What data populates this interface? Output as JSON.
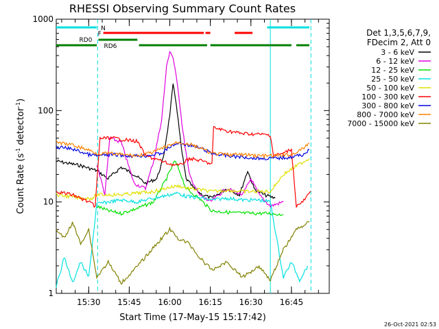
{
  "chart_data": {
    "type": "line",
    "title": "RHESSI Observing Summary Count Rates",
    "xlabel": "Start Time (17-May-15 15:17:42)",
    "ylabel_main": "Count Rate (s",
    "ylabel_sup": "-1",
    "ylabel_mid": " detector",
    "ylabel_sup2": "-1",
    "ylabel_end": ")",
    "yscale": "log",
    "ylim": [
      1,
      1000
    ],
    "xlim_minutes": [
      15.3,
      16.983
    ],
    "x_tick_labels": [
      "15:30",
      "15:45",
      "16:00",
      "16:15",
      "16:30",
      "16:45"
    ],
    "x_tick_values": [
      15.5,
      15.75,
      16.0,
      16.25,
      16.5,
      16.75
    ],
    "y_tick_labels": [
      "1",
      "10",
      "100",
      "1000"
    ],
    "y_tick_values": [
      1,
      10,
      100,
      1000
    ],
    "legend_header": [
      "Det 1,3,5,6,7,9,",
      "FDecim 2, Att 0"
    ],
    "legend_placement": "right",
    "series": [
      {
        "name": "3 - 6 keV",
        "color": "#000000",
        "points": [
          [
            15.3,
            28
          ],
          [
            15.45,
            25
          ],
          [
            15.55,
            22
          ],
          [
            15.62,
            18
          ],
          [
            15.7,
            24
          ],
          [
            15.78,
            20
          ],
          [
            15.85,
            16
          ],
          [
            15.92,
            18
          ],
          [
            15.96,
            30
          ],
          [
            16.0,
            90
          ],
          [
            16.02,
            190
          ],
          [
            16.04,
            120
          ],
          [
            16.07,
            40
          ],
          [
            16.1,
            18
          ],
          [
            16.15,
            14
          ],
          [
            16.2,
            12
          ],
          [
            16.26,
            11
          ],
          [
            16.35,
            14
          ],
          [
            16.43,
            12
          ],
          [
            16.48,
            22
          ],
          [
            16.52,
            14
          ],
          [
            16.58,
            12
          ],
          [
            16.65,
            11
          ]
        ]
      },
      {
        "name": "6 - 12 keV",
        "color": "#e000e0",
        "points": [
          [
            15.55,
            26
          ],
          [
            15.6,
            12
          ],
          [
            15.63,
            50
          ],
          [
            15.7,
            45
          ],
          [
            15.78,
            16
          ],
          [
            15.85,
            14
          ],
          [
            15.9,
            28
          ],
          [
            15.95,
            80
          ],
          [
            15.98,
            300
          ],
          [
            16.0,
            450
          ],
          [
            16.02,
            380
          ],
          [
            16.05,
            180
          ],
          [
            16.08,
            60
          ],
          [
            16.12,
            20
          ],
          [
            16.18,
            12
          ],
          [
            16.25,
            10
          ],
          [
            16.35,
            14
          ],
          [
            16.45,
            12
          ],
          [
            16.5,
            18
          ],
          [
            16.55,
            12
          ],
          [
            16.62,
            9
          ],
          [
            16.7,
            10
          ]
        ]
      },
      {
        "name": "12 - 25 keV",
        "color": "#00e000",
        "points": [
          [
            15.55,
            9
          ],
          [
            15.62,
            8
          ],
          [
            15.7,
            7.5
          ],
          [
            15.8,
            8.5
          ],
          [
            15.9,
            10
          ],
          [
            15.98,
            18
          ],
          [
            16.03,
            28
          ],
          [
            16.06,
            22
          ],
          [
            16.1,
            14
          ],
          [
            16.18,
            11
          ],
          [
            16.26,
            8
          ],
          [
            16.4,
            7.6
          ],
          [
            16.5,
            7.5
          ],
          [
            16.6,
            7.5
          ],
          [
            16.7,
            7.3
          ]
        ]
      },
      {
        "name": "25 - 50 keV",
        "color": "#00e0e0",
        "points": [
          [
            15.3,
            1.2
          ],
          [
            15.35,
            2.5
          ],
          [
            15.4,
            1.3
          ],
          [
            15.45,
            2.2
          ],
          [
            15.5,
            1.5
          ],
          [
            15.55,
            9.5
          ],
          [
            15.62,
            10
          ],
          [
            15.7,
            10.5
          ],
          [
            15.8,
            10
          ],
          [
            15.9,
            11
          ],
          [
            16.0,
            12
          ],
          [
            16.05,
            12.5
          ],
          [
            16.1,
            11.5
          ],
          [
            16.2,
            11
          ],
          [
            16.26,
            10.5
          ],
          [
            16.35,
            11
          ],
          [
            16.45,
            10.5
          ],
          [
            16.55,
            10.5
          ],
          [
            16.62,
            10
          ],
          [
            16.7,
            1.5
          ],
          [
            16.75,
            2.2
          ],
          [
            16.8,
            1.4
          ],
          [
            16.85,
            2.0
          ]
        ]
      },
      {
        "name": "50 - 100 keV",
        "color": "#e0e000",
        "points": [
          [
            15.3,
            12
          ],
          [
            15.45,
            11
          ],
          [
            15.52,
            11
          ],
          [
            15.55,
            12
          ],
          [
            15.62,
            12
          ],
          [
            15.7,
            12
          ],
          [
            15.8,
            12.5
          ],
          [
            15.9,
            13
          ],
          [
            16.0,
            14.5
          ],
          [
            16.05,
            15
          ],
          [
            16.12,
            14
          ],
          [
            16.2,
            13.5
          ],
          [
            16.26,
            13
          ],
          [
            16.35,
            13.5
          ],
          [
            16.45,
            13
          ],
          [
            16.55,
            13
          ],
          [
            16.62,
            13
          ],
          [
            16.7,
            20
          ],
          [
            16.8,
            26
          ],
          [
            16.86,
            30
          ]
        ]
      },
      {
        "name": "100 - 300 keV",
        "color": "#ff0000",
        "points": [
          [
            15.3,
            13
          ],
          [
            15.4,
            12
          ],
          [
            15.5,
            10
          ],
          [
            15.54,
            9
          ],
          [
            15.57,
            50
          ],
          [
            15.65,
            50
          ],
          [
            15.72,
            48
          ],
          [
            15.8,
            46
          ],
          [
            15.85,
            32
          ],
          [
            15.95,
            28
          ],
          [
            16.0,
            26
          ],
          [
            16.06,
            25
          ],
          [
            16.12,
            30
          ],
          [
            16.2,
            28
          ],
          [
            16.26,
            26
          ],
          [
            16.27,
            65
          ],
          [
            16.35,
            60
          ],
          [
            16.45,
            56
          ],
          [
            16.55,
            55
          ],
          [
            16.62,
            54
          ],
          [
            16.64,
            32
          ],
          [
            16.7,
            34
          ],
          [
            16.75,
            38
          ],
          [
            16.78,
            9
          ],
          [
            16.82,
            10
          ],
          [
            16.87,
            13
          ]
        ]
      },
      {
        "name": "300 - 800 keV",
        "color": "#0000e0",
        "points": [
          [
            15.3,
            40
          ],
          [
            15.4,
            38
          ],
          [
            15.5,
            33
          ],
          [
            15.55,
            32
          ],
          [
            15.65,
            33
          ],
          [
            15.75,
            32
          ],
          [
            15.85,
            32
          ],
          [
            15.95,
            34
          ],
          [
            16.0,
            40
          ],
          [
            16.05,
            44
          ],
          [
            16.12,
            42
          ],
          [
            16.2,
            38
          ],
          [
            16.26,
            34
          ],
          [
            16.35,
            32
          ],
          [
            16.45,
            31
          ],
          [
            16.55,
            30
          ],
          [
            16.65,
            30
          ],
          [
            16.75,
            31
          ],
          [
            16.82,
            33
          ],
          [
            16.86,
            37
          ]
        ]
      },
      {
        "name": "800 - 7000 keV",
        "color": "#ff8000",
        "points": [
          [
            15.3,
            45
          ],
          [
            15.4,
            42
          ],
          [
            15.5,
            37
          ],
          [
            15.55,
            34
          ],
          [
            15.62,
            34
          ],
          [
            15.7,
            33
          ],
          [
            15.8,
            32
          ],
          [
            15.9,
            35
          ],
          [
            16.0,
            42
          ],
          [
            16.05,
            45
          ],
          [
            16.12,
            43
          ],
          [
            16.2,
            38
          ],
          [
            16.26,
            34
          ],
          [
            16.35,
            33
          ],
          [
            16.45,
            33
          ],
          [
            16.55,
            32
          ],
          [
            16.65,
            32
          ],
          [
            16.75,
            33
          ],
          [
            16.82,
            38
          ],
          [
            16.86,
            44
          ]
        ]
      },
      {
        "name": "7000 - 15000 keV",
        "color": "#808000",
        "points": [
          [
            15.3,
            5
          ],
          [
            15.35,
            4
          ],
          [
            15.4,
            6
          ],
          [
            15.45,
            3.5
          ],
          [
            15.5,
            5
          ],
          [
            15.55,
            1.5
          ],
          [
            15.62,
            2.2
          ],
          [
            15.7,
            1.3
          ],
          [
            15.78,
            1.8
          ],
          [
            15.85,
            2.5
          ],
          [
            15.92,
            3.5
          ],
          [
            16.0,
            5
          ],
          [
            16.05,
            4
          ],
          [
            16.12,
            3.5
          ],
          [
            16.18,
            2.5
          ],
          [
            16.26,
            1.8
          ],
          [
            16.35,
            2.2
          ],
          [
            16.45,
            1.5
          ],
          [
            16.55,
            2.0
          ],
          [
            16.62,
            1.4
          ],
          [
            16.7,
            3.0
          ],
          [
            16.78,
            5
          ],
          [
            16.86,
            6
          ]
        ]
      }
    ],
    "flag_bars": [
      {
        "label": "N",
        "color": "#00e0e0",
        "y": 1.0,
        "segments": [
          [
            15.3,
            15.55
          ],
          [
            16.6,
            16.86
          ]
        ]
      },
      {
        "label": "F",
        "color": "#ff0000",
        "y": 0.75,
        "segments": [
          [
            15.59,
            16.21
          ],
          [
            16.22,
            16.25
          ],
          [
            16.4,
            16.51
          ]
        ]
      },
      {
        "label": "RD0",
        "color": "#008000",
        "y": 0.55,
        "segments": [
          [
            15.56,
            15.8
          ]
        ]
      },
      {
        "label": "RD6",
        "color": "#008000",
        "y": 0.35,
        "segments": [
          [
            15.3,
            15.55
          ],
          [
            15.81,
            16.23
          ],
          [
            16.25,
            16.75
          ],
          [
            16.78,
            16.86
          ]
        ]
      }
    ],
    "vlines_cyan_dashed": [
      15.555,
      16.87
    ],
    "vlines_cyan_solid": [
      16.62
    ]
  },
  "footer_date": "26-Oct-2021 02:53"
}
